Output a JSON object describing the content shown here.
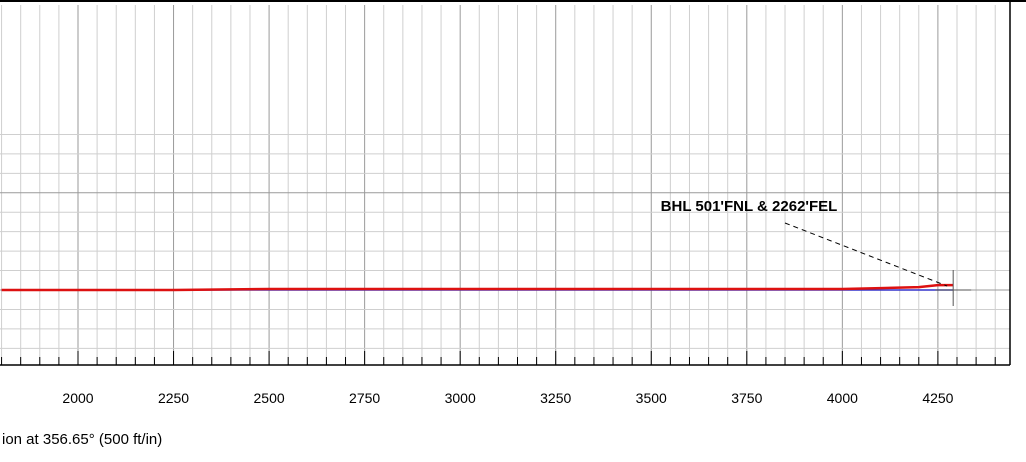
{
  "chart_data": {
    "type": "line",
    "title": "",
    "xlabel": "ion at 356.65° (500 ft/in)",
    "ylabel": "",
    "xlim": [
      1800,
      4420
    ],
    "ylim": [
      -190,
      170
    ],
    "x_ticks": [
      2000,
      2250,
      2500,
      2750,
      3000,
      3250,
      3500,
      3750,
      4000,
      4250
    ],
    "x_tick_labels": [
      "2000",
      "2250",
      "2500",
      "2750",
      "3000",
      "3250",
      "3500",
      "3750",
      "4000",
      "4250"
    ],
    "grid": true,
    "annotations": [
      {
        "text": "BHL 501'FNL & 2262'FEL",
        "points_to": {
          "x": 4290,
          "y": 2
        }
      }
    ],
    "series": [
      {
        "color": "#3333cc",
        "x": [
          1800,
          2500,
          3000,
          3500,
          4000,
          4290
        ],
        "y": [
          0,
          0,
          0,
          0,
          0,
          0
        ]
      },
      {
        "color": "#dd1111",
        "x": [
          1800,
          2250,
          2500,
          2750,
          3000,
          3250,
          3500,
          3750,
          4000,
          4100,
          4200,
          4250,
          4290
        ],
        "y": [
          0,
          0,
          1,
          1,
          1,
          1,
          1,
          1,
          1,
          2,
          3,
          5,
          5
        ]
      }
    ],
    "end_marker": {
      "x": 4290,
      "y": 0
    }
  },
  "colors": {
    "minor_grid": "#cfcfcf",
    "major_grid": "#9a9a9a",
    "frame": "#000000"
  }
}
